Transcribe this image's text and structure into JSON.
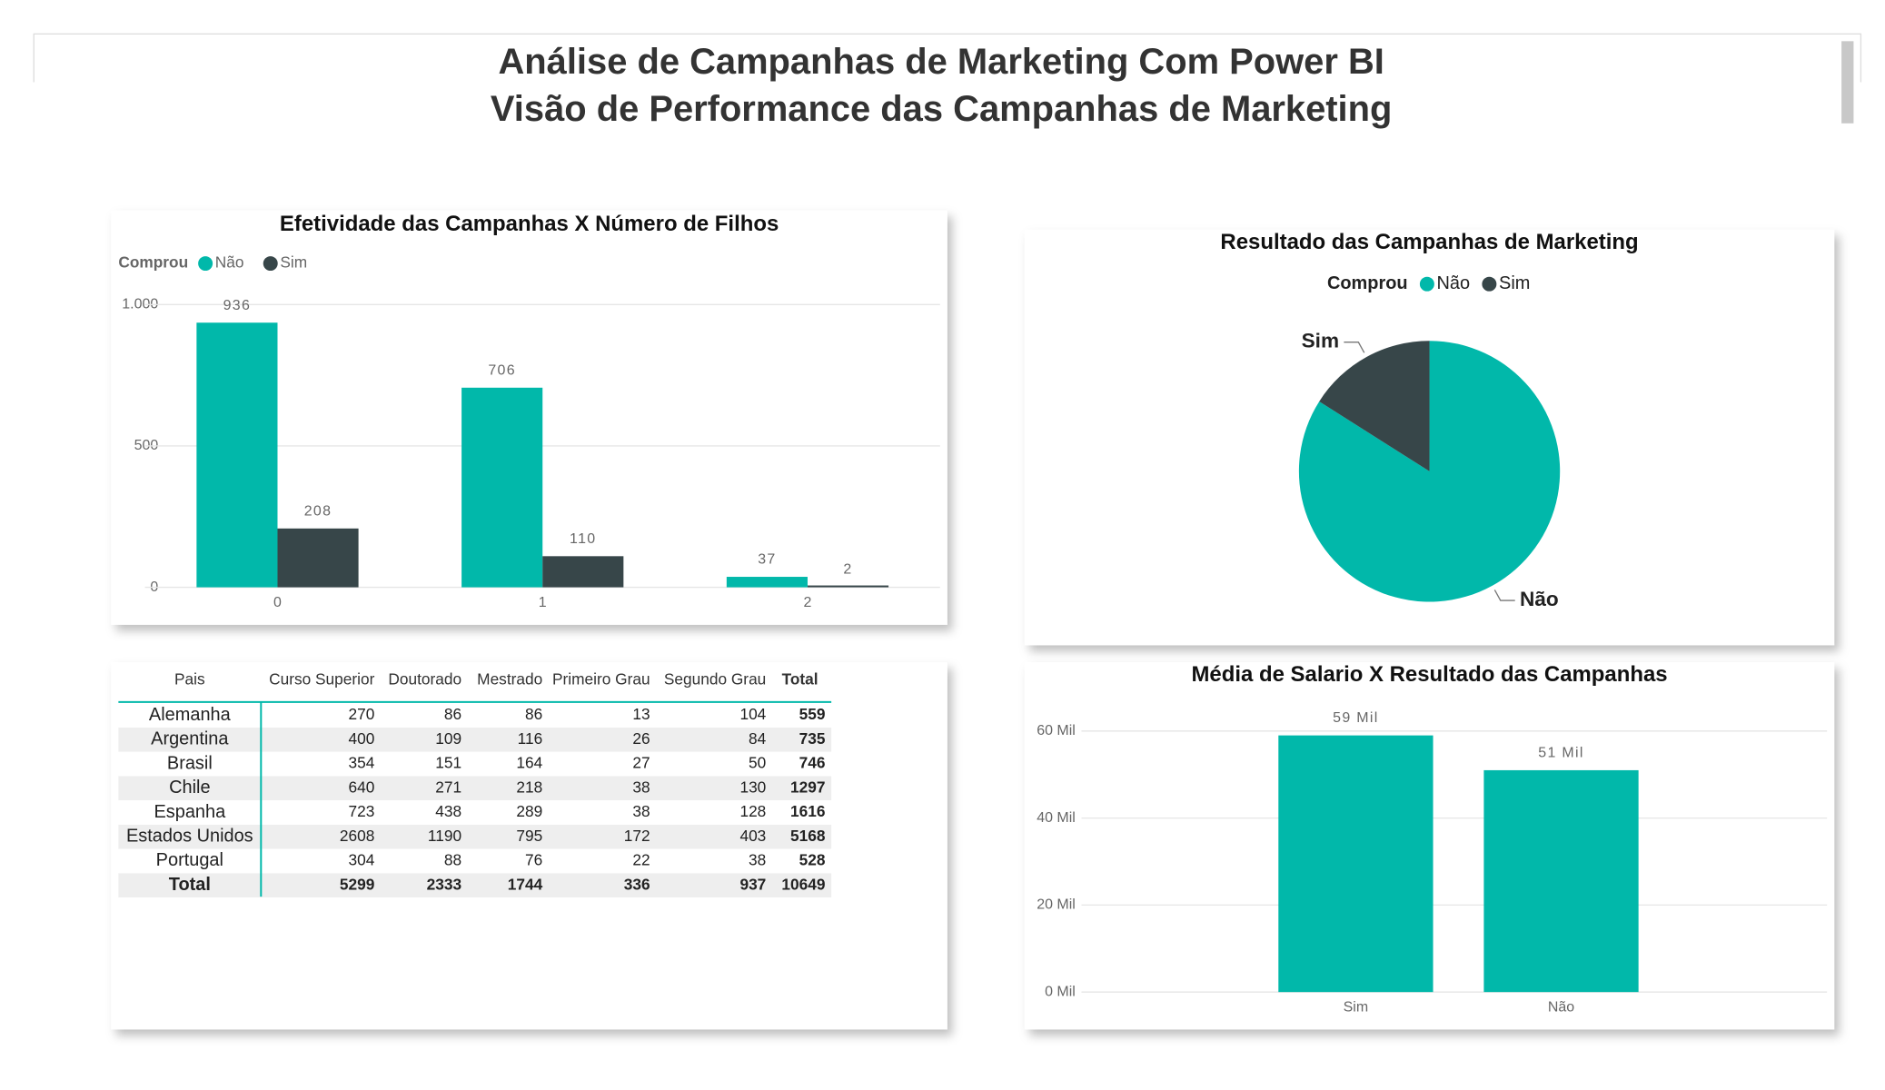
{
  "header": {
    "title": "Análise de Campanhas de Marketing Com Power BI",
    "subtitle": "Visão de Performance das Campanhas de Marketing"
  },
  "chart_data": [
    {
      "type": "bar",
      "title": "Efetividade das Campanhas X Número de Filhos",
      "legend_title": "Comprou",
      "categories": [
        "0",
        "1",
        "2"
      ],
      "series": [
        {
          "name": "Não",
          "color": "#01b8aa",
          "values": [
            936,
            706,
            37
          ]
        },
        {
          "name": "Sim",
          "color": "#374649",
          "values": [
            208,
            110,
            2
          ]
        }
      ],
      "ylim": [
        0,
        1000
      ],
      "yticks": [
        0,
        500,
        {
          "value": 1000,
          "label": "1.000"
        }
      ],
      "grid": true
    },
    {
      "type": "pie",
      "title": "Resultado das Campanhas de Marketing",
      "legend_title": "Comprou",
      "categories": [
        "Não",
        "Sim"
      ],
      "values": [
        1679,
        320
      ],
      "colors": [
        "#01b8aa",
        "#374649"
      ]
    },
    {
      "type": "bar",
      "title": "Média de Salario X Resultado das Campanhas",
      "categories": [
        "Sim",
        "Não"
      ],
      "series": [
        {
          "color": "#01b8aa",
          "values": [
            59000,
            51000
          ],
          "value_labels": [
            "59 Mil",
            "51 Mil"
          ]
        }
      ],
      "ylim": [
        0,
        60000
      ],
      "yticks": [
        {
          "value": 0,
          "label": "0 Mil"
        },
        {
          "value": 20000,
          "label": "20 Mil"
        },
        {
          "value": 40000,
          "label": "40 Mil"
        },
        {
          "value": 60000,
          "label": "60 Mil"
        }
      ],
      "grid": true
    }
  ],
  "table": {
    "columns": [
      "Pais",
      "Curso Superior",
      "Doutorado",
      "Mestrado",
      "Primeiro Grau",
      "Segundo Grau",
      "Total"
    ],
    "rows": [
      [
        "Alemanha",
        270,
        86,
        86,
        13,
        104,
        559
      ],
      [
        "Argentina",
        400,
        109,
        116,
        26,
        84,
        735
      ],
      [
        "Brasil",
        354,
        151,
        164,
        27,
        50,
        746
      ],
      [
        "Chile",
        640,
        271,
        218,
        38,
        130,
        1297
      ],
      [
        "Espanha",
        723,
        438,
        289,
        38,
        128,
        1616
      ],
      [
        "Estados Unidos",
        2608,
        1190,
        795,
        172,
        403,
        5168
      ],
      [
        "Portugal",
        304,
        88,
        76,
        22,
        38,
        528
      ],
      [
        "Total",
        5299,
        2333,
        1744,
        336,
        937,
        10649
      ]
    ]
  }
}
